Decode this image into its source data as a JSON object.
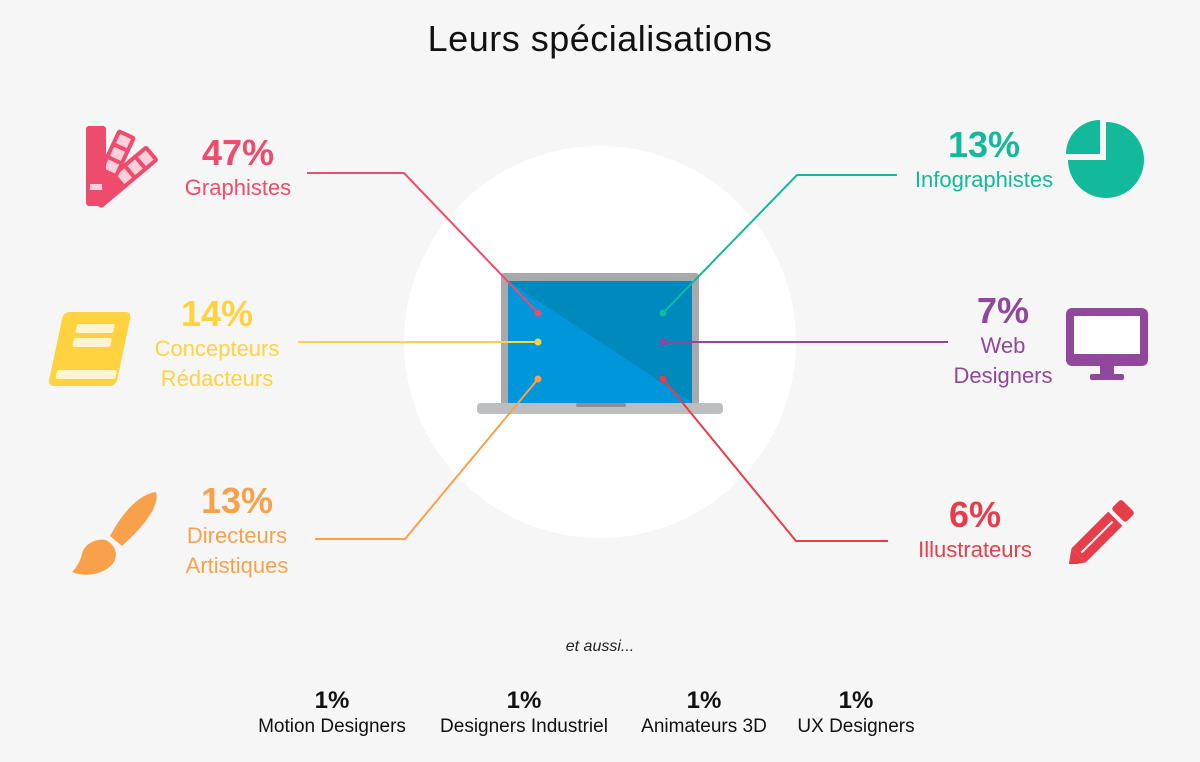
{
  "title": "Leurs spécialisations",
  "colors": {
    "graphistes": "#ef4b6c",
    "concepteurs": "#ffd23f",
    "directeurs": "#f7a24b",
    "infographistes": "#12b99a",
    "web": "#91479b",
    "illustrateurs": "#e63d4a",
    "screen_dark": "#0089bd",
    "screen_light": "#0096db"
  },
  "specialisations": {
    "graphistes": {
      "pct": "47%",
      "line1": "Graphistes",
      "line2": "",
      "icon": "color-swatch-icon"
    },
    "concepteurs": {
      "pct": "14%",
      "line1": "Concepteurs",
      "line2": "Rédacteurs",
      "icon": "book-icon"
    },
    "directeurs": {
      "pct": "13%",
      "line1": "Directeurs",
      "line2": "Artistiques",
      "icon": "paintbrush-icon"
    },
    "infographistes": {
      "pct": "13%",
      "line1": "Infographistes",
      "line2": "",
      "icon": "pie-chart-icon"
    },
    "web": {
      "pct": "7%",
      "line1": "Web",
      "line2": "Designers",
      "icon": "monitor-icon"
    },
    "illustrateurs": {
      "pct": "6%",
      "line1": "Illustrateurs",
      "line2": "",
      "icon": "pencil-icon"
    }
  },
  "aussi": "et aussi...",
  "extras": [
    {
      "pct": "1%",
      "label": "Motion Designers"
    },
    {
      "pct": "1%",
      "label": "Designers Industriel"
    },
    {
      "pct": "1%",
      "label": "Animateurs 3D"
    },
    {
      "pct": "1%",
      "label": "UX Designers"
    }
  ]
}
